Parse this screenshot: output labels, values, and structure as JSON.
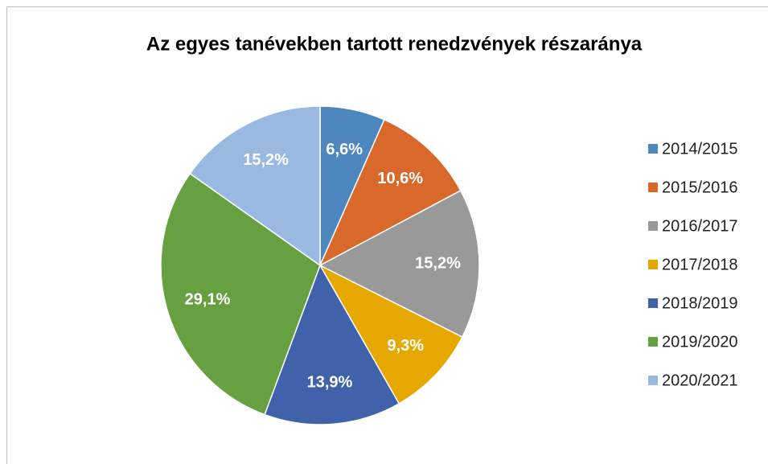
{
  "chart_data": {
    "type": "pie",
    "title": "Az egyes tanévekben tartott renedzvények részaránya",
    "categories": [
      "2014/2015",
      "2015/2016",
      "2016/2017",
      "2017/2018",
      "2018/2019",
      "2019/2020",
      "2020/2021"
    ],
    "values": [
      6.6,
      10.6,
      15.2,
      9.3,
      13.9,
      29.1,
      15.2
    ],
    "value_labels": [
      "6,6%",
      "10,6%",
      "15,2%",
      "9,3%",
      "13,9%",
      "29,1%",
      "15,2%"
    ],
    "colors": [
      "#4e86c0",
      "#d8692a",
      "#999999",
      "#e6a800",
      "#3f62ab",
      "#66a041",
      "#9ab9e0"
    ],
    "legend": "right"
  }
}
